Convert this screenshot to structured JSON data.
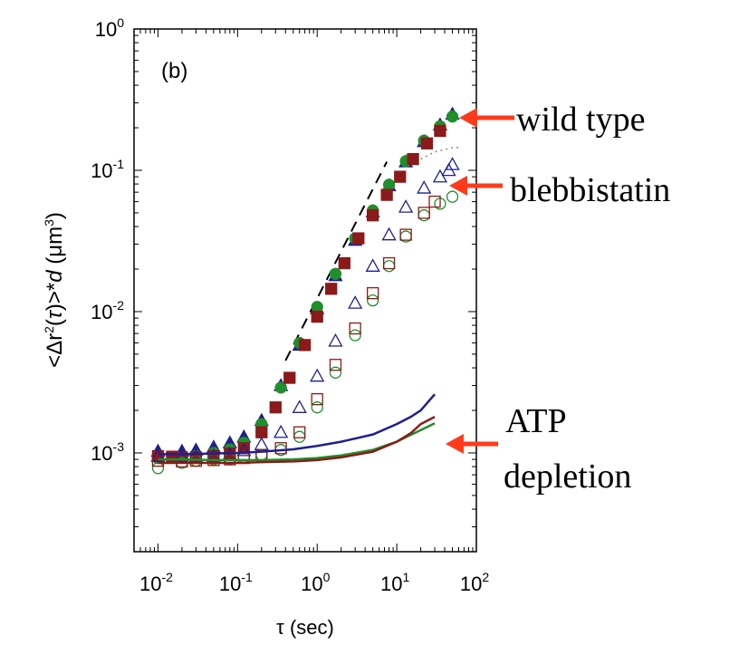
{
  "chart_data": {
    "type": "scatter",
    "panel_label": "(b)",
    "xlabel": "τ (sec)",
    "ylabel": {
      "prefix": "<Δr",
      "sup": "2",
      "paren_open": "(",
      "tau": "τ",
      "paren_close": ")>*",
      "d": "d",
      "unit_open": " (μm",
      "unit_sup": "3",
      "unit_close": ")"
    },
    "x_scale": "log",
    "y_scale": "log",
    "xlim": [
      0.005,
      100
    ],
    "ylim": [
      0.0002,
      1
    ],
    "x_ticks": [
      {
        "base": "10",
        "exp": "-2",
        "value": 0.01
      },
      {
        "base": "10",
        "exp": "-1",
        "value": 0.1
      },
      {
        "base": "10",
        "exp": "0",
        "value": 1
      },
      {
        "base": "10",
        "exp": "1",
        "value": 10
      },
      {
        "base": "10",
        "exp": "2",
        "value": 100
      }
    ],
    "y_ticks": [
      {
        "base": "10",
        "exp": "-3",
        "value": 0.001
      },
      {
        "base": "10",
        "exp": "-2",
        "value": 0.01
      },
      {
        "base": "10",
        "exp": "-1",
        "value": 0.1
      },
      {
        "base": "10",
        "exp": "0",
        "value": 1
      }
    ],
    "grid": false,
    "legend": "none",
    "guide_line": {
      "style": "dashed",
      "x": [
        0.4,
        7.5
      ],
      "y": [
        0.0045,
        0.115
      ],
      "color": "#000000"
    },
    "series": [
      {
        "group": "wild type",
        "marker": "triangle-filled",
        "color": "#1f1f8f",
        "x": [
          0.01,
          0.02,
          0.03,
          0.05,
          0.08,
          0.12,
          0.2,
          0.35,
          0.6,
          1,
          1.7,
          3,
          5,
          8,
          13,
          22,
          35,
          50
        ],
        "y": [
          0.00103,
          0.00103,
          0.00105,
          0.0011,
          0.00118,
          0.0013,
          0.0017,
          0.003,
          0.0058,
          0.0105,
          0.018,
          0.032,
          0.051,
          0.078,
          0.115,
          0.16,
          0.21,
          0.25
        ]
      },
      {
        "group": "wild type",
        "marker": "circle-filled",
        "color": "#1f8f2a",
        "x": [
          0.01,
          0.02,
          0.03,
          0.05,
          0.08,
          0.12,
          0.2,
          0.35,
          0.6,
          1,
          1.7,
          3,
          5,
          8,
          13,
          22,
          35,
          50
        ],
        "y": [
          0.00092,
          0.00093,
          0.00095,
          0.001,
          0.00106,
          0.00118,
          0.0016,
          0.0029,
          0.006,
          0.0108,
          0.0185,
          0.033,
          0.052,
          0.079,
          0.116,
          0.162,
          0.205,
          0.24
        ]
      },
      {
        "group": "wild type",
        "marker": "square-filled",
        "color": "#8b1a1a",
        "x": [
          0.01,
          0.015,
          0.02,
          0.03,
          0.05,
          0.08,
          0.12,
          0.2,
          0.3,
          0.45,
          0.7,
          1,
          1.5,
          2.2,
          3.3,
          5,
          7.5,
          11,
          16,
          24,
          35
        ],
        "y": [
          0.00095,
          0.00094,
          0.00093,
          0.00093,
          0.00095,
          0.00099,
          0.00108,
          0.0014,
          0.0021,
          0.0034,
          0.0058,
          0.0092,
          0.0145,
          0.022,
          0.033,
          0.048,
          0.067,
          0.09,
          0.12,
          0.155,
          0.19
        ]
      },
      {
        "group": "blebbistatin",
        "marker": "triangle-open",
        "color": "#1f1f8f",
        "x": [
          0.01,
          0.02,
          0.03,
          0.05,
          0.08,
          0.12,
          0.2,
          0.35,
          0.6,
          1,
          1.7,
          3,
          5,
          8,
          13,
          22,
          35,
          45,
          50
        ],
        "y": [
          0.00095,
          0.00094,
          0.00094,
          0.00095,
          0.00098,
          0.00104,
          0.00115,
          0.0014,
          0.0021,
          0.0035,
          0.0062,
          0.0115,
          0.021,
          0.035,
          0.055,
          0.075,
          0.09,
          0.1,
          0.11
        ]
      },
      {
        "group": "blebbistatin",
        "marker": "circle-open",
        "color": "#1f8f2a",
        "x": [
          0.01,
          0.02,
          0.03,
          0.05,
          0.08,
          0.12,
          0.2,
          0.35,
          0.6,
          1,
          1.7,
          3,
          5,
          8,
          13,
          22,
          35,
          50
        ],
        "y": [
          0.00078,
          0.00085,
          0.00088,
          0.0009,
          0.00091,
          0.00093,
          0.00097,
          0.00105,
          0.0013,
          0.0021,
          0.0037,
          0.0068,
          0.012,
          0.021,
          0.034,
          0.048,
          0.058,
          0.065
        ]
      },
      {
        "group": "blebbistatin",
        "marker": "square-open",
        "color": "#8b1a1a",
        "x": [
          0.01,
          0.02,
          0.03,
          0.05,
          0.08,
          0.12,
          0.2,
          0.35,
          0.6,
          1,
          1.7,
          3,
          5,
          8,
          13,
          22,
          30
        ],
        "y": [
          0.00088,
          0.00087,
          0.00088,
          0.00089,
          0.0009,
          0.00092,
          0.00096,
          0.00108,
          0.0014,
          0.0024,
          0.0042,
          0.0076,
          0.0135,
          0.022,
          0.035,
          0.05,
          0.06
        ]
      },
      {
        "group": "ATP depletion",
        "marker": "line",
        "color": "#1f1f8f",
        "x": [
          0.01,
          0.02,
          0.05,
          0.1,
          0.2,
          0.5,
          1,
          2,
          5,
          10,
          15,
          20,
          30
        ],
        "y": [
          0.00098,
          0.00098,
          0.00099,
          0.001,
          0.00102,
          0.00106,
          0.00112,
          0.0012,
          0.00135,
          0.0016,
          0.0018,
          0.002,
          0.0026
        ]
      },
      {
        "group": "ATP depletion",
        "marker": "line",
        "color": "#1f8f2a",
        "x": [
          0.01,
          0.02,
          0.05,
          0.1,
          0.2,
          0.5,
          1,
          2,
          5,
          10,
          20,
          30
        ],
        "y": [
          0.0009,
          0.0009,
          0.00089,
          0.00089,
          0.00089,
          0.0009,
          0.00092,
          0.00096,
          0.00105,
          0.0012,
          0.00145,
          0.00162
        ]
      },
      {
        "group": "ATP depletion",
        "marker": "line",
        "color": "#8b1a1a",
        "x": [
          0.01,
          0.02,
          0.05,
          0.1,
          0.2,
          0.5,
          1,
          2,
          5,
          10,
          15,
          20,
          30
        ],
        "y": [
          0.00085,
          0.00085,
          0.00085,
          0.00085,
          0.00086,
          0.00087,
          0.00089,
          0.00093,
          0.00102,
          0.0012,
          0.00138,
          0.0016,
          0.0018
        ]
      },
      {
        "group": "blebbistatin",
        "marker": "dotted-line",
        "color": "#888888",
        "x": [
          20,
          30,
          40,
          50,
          60
        ],
        "y": [
          0.12,
          0.135,
          0.14,
          0.145,
          0.145
        ]
      }
    ],
    "annotations": [
      {
        "text": "wild type",
        "arrow_to": {
          "x": 55,
          "y": 0.25
        }
      },
      {
        "text": "blebbistatin",
        "arrow_to": {
          "x": 50,
          "y": 0.1
        }
      },
      {
        "text": "ATP",
        "arrow_to": {
          "x": 30,
          "y": 0.0019
        }
      },
      {
        "text": "depletion",
        "arrow_to": null
      }
    ],
    "arrow_color": "#ff3a1a"
  }
}
